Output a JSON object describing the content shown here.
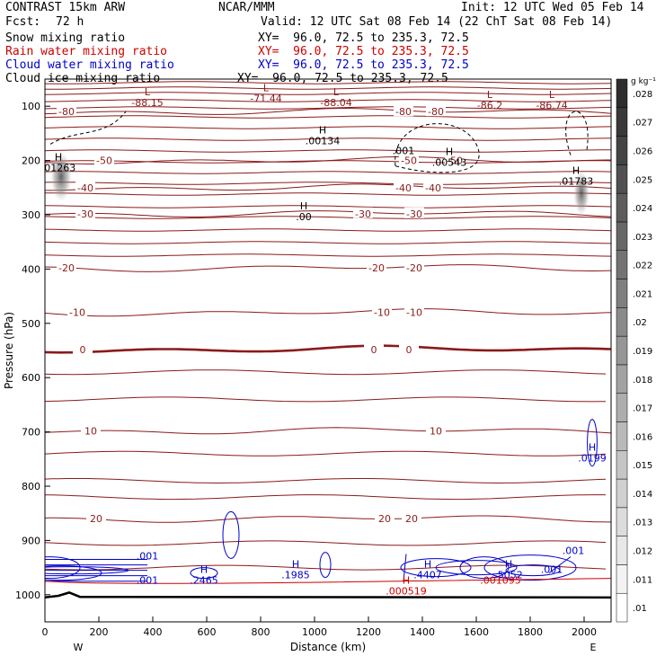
{
  "header": {
    "model": "CONTRAST 15km ARW",
    "institution": "NCAR/MMM",
    "init": "Init: 12 UTC Wed 05 Feb 14",
    "fcst_label": "Fcst:",
    "fcst_value": "72 h",
    "valid": "Valid: 12 UTC Sat 08 Feb 14 (22 ChT Sat 08 Feb 14)"
  },
  "legend": [
    {
      "name": "Snow mixing ratio",
      "xy": "XY=  96.0, 72.5 to 235.3, 72.5",
      "color": "#000000"
    },
    {
      "name": "Rain water mixing ratio",
      "xy": "XY=  96.0, 72.5 to 235.3, 72.5",
      "color": "#cc0000"
    },
    {
      "name": "Cloud water mixing ratio",
      "xy": "XY=  96.0, 72.5 to 235.3, 72.5",
      "color": "#0000cc"
    },
    {
      "name": "Cloud ice mixing ratio",
      "xy": "XY=  96.0, 72.5 to 235.3, 72.5",
      "color": "#000000"
    }
  ],
  "chart_data": {
    "type": "cross-section",
    "xlabel": "Distance (km)",
    "ylabel": "Pressure (hPa)",
    "xlim": [
      0,
      2100
    ],
    "ylim": [
      1050,
      50
    ],
    "x_ticks": [
      0,
      200,
      400,
      600,
      800,
      1000,
      1200,
      1400,
      1600,
      1800,
      2000
    ],
    "y_ticks": [
      100,
      200,
      300,
      400,
      500,
      600,
      700,
      800,
      900,
      1000
    ],
    "x_end_labels": {
      "left": "W",
      "right": "E"
    },
    "temperature_contours": [
      {
        "value": -80,
        "label": "-80",
        "p": 110,
        "labels_at": [
          80,
          1330,
          1450
        ]
      },
      {
        "value": -50,
        "label": "-50",
        "p": 200,
        "labels_at": [
          220,
          1350,
          1520
        ]
      },
      {
        "value": -40,
        "label": "-40",
        "p": 250,
        "labels_at": [
          150,
          1330,
          1440
        ]
      },
      {
        "value": -30,
        "label": "-30",
        "p": 298,
        "labels_at": [
          150,
          1180,
          1370
        ]
      },
      {
        "value": -20,
        "label": "-20",
        "p": 398,
        "labels_at": [
          80,
          1230,
          1370
        ]
      },
      {
        "value": -10,
        "label": "-10",
        "p": 480,
        "labels_at": [
          120,
          1250,
          1370
        ]
      },
      {
        "value": 0,
        "label": "0",
        "p": 548,
        "labels_at": [
          140,
          1220,
          1350
        ]
      },
      {
        "value": 10,
        "label": "10",
        "p": 698,
        "labels_at": [
          170,
          1450
        ]
      },
      {
        "value": 20,
        "label": "20",
        "p": 860,
        "labels_at": [
          190,
          1260,
          1360
        ]
      }
    ],
    "extrema_labels": [
      {
        "letter": "L",
        "value": "-88.15",
        "x": 380,
        "p": 80,
        "color": "#8b1a1a"
      },
      {
        "letter": "L",
        "value": "-71.44",
        "x": 820,
        "p": 72,
        "color": "#8b1a1a"
      },
      {
        "letter": "L",
        "value": "-88.04",
        "x": 1080,
        "p": 80,
        "color": "#8b1a1a"
      },
      {
        "letter": "L",
        "value": "-86.2",
        "x": 1650,
        "p": 85,
        "color": "#8b1a1a"
      },
      {
        "letter": "L",
        "value": "-86.74",
        "x": 1880,
        "p": 85,
        "color": "#8b1a1a"
      },
      {
        "letter": "H",
        "value": ".00134",
        "x": 1030,
        "p": 150,
        "color": "#000000"
      },
      {
        "letter": "H",
        "value": ".00543",
        "x": 1500,
        "p": 190,
        "color": "#000000"
      },
      {
        "letter": "",
        "value": ".001",
        "x": 1330,
        "p": 188,
        "color": "#000000"
      },
      {
        "letter": "H",
        "value": ".01263",
        "x": 50,
        "p": 200,
        "color": "#000000"
      },
      {
        "letter": "H",
        "value": ".01783",
        "x": 1970,
        "p": 225,
        "color": "#000000"
      },
      {
        "letter": "H",
        "value": ".00",
        "x": 960,
        "p": 290,
        "color": "#000000"
      },
      {
        "letter": "H",
        "value": ".0199",
        "x": 2030,
        "p": 735,
        "color": "#0000cc"
      },
      {
        "letter": "H",
        "value": ".2465",
        "x": 590,
        "p": 960,
        "color": "#0000cc"
      },
      {
        "letter": "H",
        "value": ".1985",
        "x": 930,
        "p": 950,
        "color": "#0000cc"
      },
      {
        "letter": "H",
        "value": ".4407",
        "x": 1420,
        "p": 950,
        "color": "#0000cc"
      },
      {
        "letter": "H",
        "value": ".5052",
        "x": 1720,
        "p": 950,
        "color": "#0000cc"
      },
      {
        "letter": "",
        "value": ".001",
        "x": 380,
        "p": 935,
        "color": "#0000cc"
      },
      {
        "letter": "",
        "value": ".001",
        "x": 380,
        "p": 980,
        "color": "#0000cc"
      },
      {
        "letter": "",
        "value": ".001",
        "x": 1960,
        "p": 925,
        "color": "#0000cc"
      },
      {
        "letter": "",
        "value": ".001",
        "x": 1880,
        "p": 960,
        "color": "#0000cc"
      },
      {
        "letter": "H",
        "value": ".000519",
        "x": 1340,
        "p": 980,
        "color": "#cc0000"
      },
      {
        "letter": "",
        "value": ".001095",
        "x": 1690,
        "p": 980,
        "color": "#cc0000"
      }
    ],
    "colorbar": {
      "unit": "g kg⁻¹",
      "ticks": [
        ".01",
        ".011",
        ".012",
        ".013",
        ".014",
        ".015",
        ".016",
        ".017",
        ".018",
        ".019",
        ".02",
        ".021",
        ".022",
        ".023",
        ".024",
        ".025",
        ".026",
        ".027",
        ".028"
      ]
    }
  }
}
